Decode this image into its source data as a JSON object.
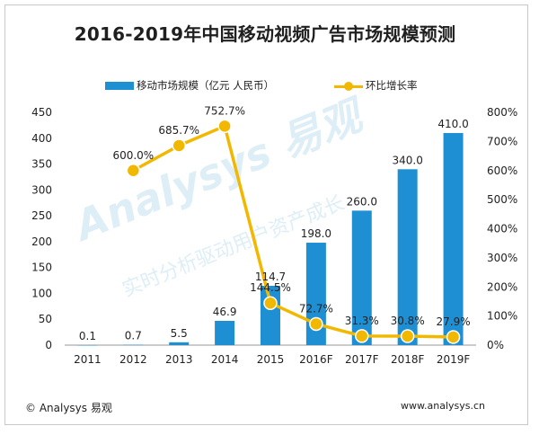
{
  "chart_data": {
    "type": "bar",
    "title": "2016-2019年中国移动视频广告市场规模预测",
    "categories": [
      "2011",
      "2012",
      "2013",
      "2014",
      "2015",
      "2016F",
      "2017F",
      "2018F",
      "2019F"
    ],
    "series": [
      {
        "name": "移动市场规模（亿元 人民币）",
        "type": "bar",
        "axis": "left",
        "values": [
          0.1,
          0.7,
          5.5,
          46.9,
          114.7,
          198.0,
          260.0,
          340.0,
          410.0
        ],
        "labels": [
          "0.1",
          "0.7",
          "5.5",
          "46.9",
          "114.7",
          "198.0",
          "260.0",
          "340.0",
          "410.0"
        ],
        "color": "#1f8fd4"
      },
      {
        "name": "环比增长率",
        "type": "line",
        "axis": "right",
        "values": [
          null,
          600.0,
          685.7,
          752.7,
          144.5,
          72.7,
          31.3,
          30.8,
          27.9
        ],
        "labels": [
          "",
          "600.0%",
          "685.7%",
          "752.7%",
          "144.5%",
          "72.7%",
          "31.3%",
          "30.8%",
          "27.9%"
        ],
        "color": "#f2b800"
      }
    ],
    "y_left": {
      "min": 0,
      "max": 450,
      "ticks": [
        "0",
        "50",
        "100",
        "150",
        "200",
        "250",
        "300",
        "350",
        "400",
        "450"
      ]
    },
    "y_right": {
      "min": 0,
      "max": 800,
      "ticks": [
        "0%",
        "100%",
        "200%",
        "300%",
        "400%",
        "500%",
        "600%",
        "700%",
        "800%"
      ]
    },
    "grid": false,
    "legend_position": "top"
  },
  "footer": {
    "copyright": "© Analysys 易观",
    "url": "www.analysys.cn"
  },
  "watermark": {
    "brand": "Analysys 易观",
    "slogan": "实时分析驱动用户资产成长"
  }
}
